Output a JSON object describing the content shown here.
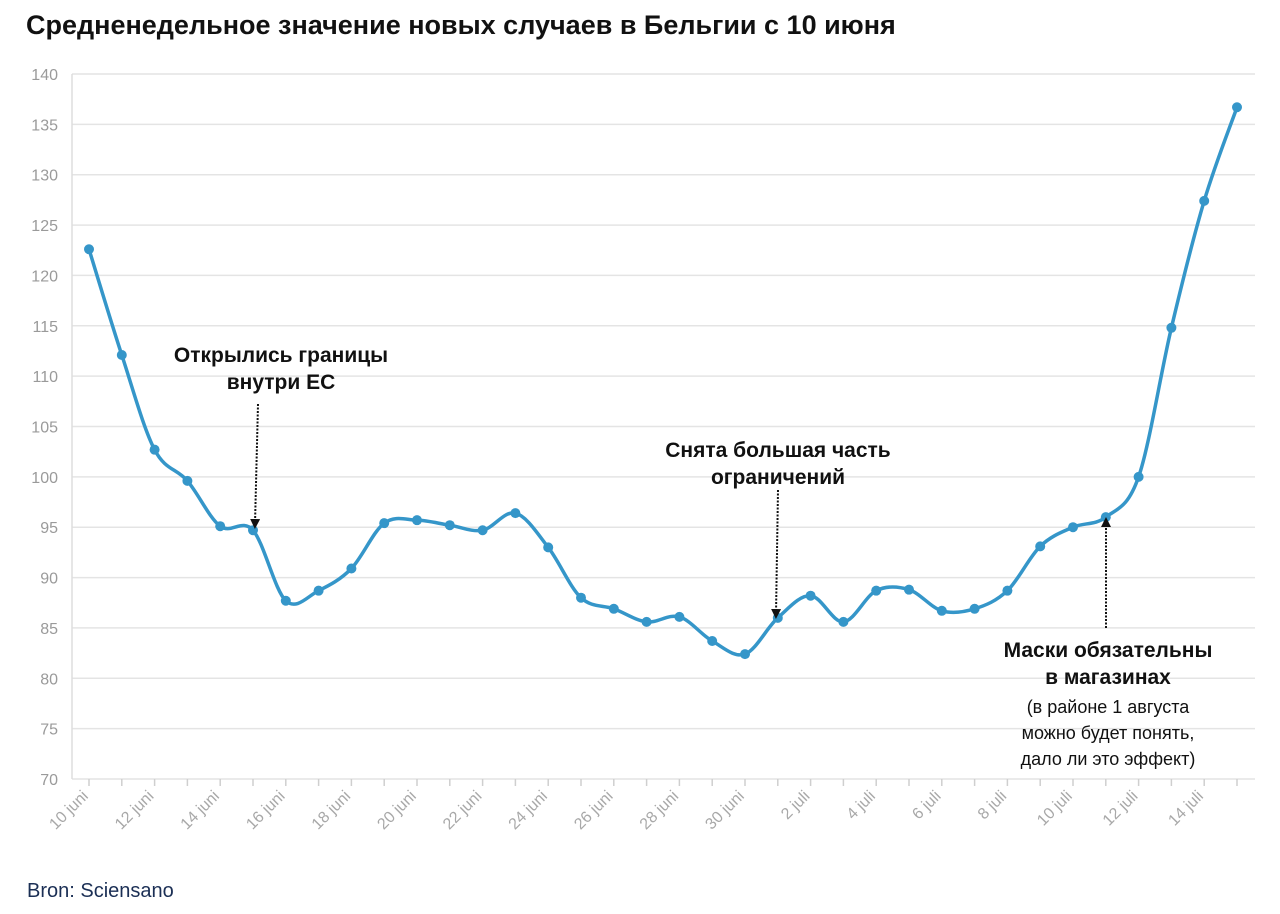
{
  "chart_data": {
    "type": "line",
    "title": "Средненедельное значение новых случаев в Бельгии с 10 июня",
    "source": "Bron: Sciensano",
    "ylim": [
      70,
      140
    ],
    "yticks": [
      70,
      75,
      80,
      85,
      90,
      95,
      100,
      105,
      110,
      115,
      120,
      125,
      130,
      135,
      140
    ],
    "grid": true,
    "x_tick_labels": [
      "10 juni",
      "12 juni",
      "14 juni",
      "16 juni",
      "18 juni",
      "20 juni",
      "22 juni",
      "24 juni",
      "26 juni",
      "28 juni",
      "30 juni",
      "2 juli",
      "4 juli",
      "6 juli",
      "8 juli",
      "10 juli",
      "12 juli",
      "14 juli"
    ],
    "x": [
      "10 juni",
      "11 juni",
      "12 juni",
      "13 juni",
      "14 juni",
      "15 juni",
      "16 juni",
      "17 juni",
      "18 juni",
      "19 juni",
      "20 juni",
      "21 juni",
      "22 juni",
      "23 juni",
      "24 juni",
      "25 juni",
      "26 juni",
      "27 juni",
      "28 juni",
      "29 juni",
      "30 juni",
      "1 juli",
      "2 juli",
      "3 juli",
      "4 juli",
      "5 juli",
      "6 juli",
      "7 juli",
      "8 juli",
      "9 juli",
      "10 juli",
      "11 juli",
      "12 juli",
      "13 juli",
      "14 juli",
      "15 juli"
    ],
    "series": [
      {
        "color": "#3596c9",
        "values": [
          122.6,
          112.1,
          102.7,
          99.6,
          95.1,
          94.7,
          87.7,
          88.7,
          90.9,
          95.4,
          95.7,
          95.2,
          94.7,
          96.4,
          93.0,
          88.0,
          86.9,
          85.6,
          86.1,
          83.7,
          82.4,
          86.0,
          88.2,
          85.6,
          88.7,
          88.8,
          86.7,
          86.9,
          88.7,
          93.1,
          95.0,
          96.0,
          100.0,
          114.8,
          127.4,
          136.7
        ]
      }
    ],
    "annotations": [
      {
        "title_lines": [
          "Открылись границы",
          "внутри ЕС"
        ],
        "sub_lines": [],
        "x": "15 juni",
        "y": 94.7
      },
      {
        "title_lines": [
          "Снята большая часть",
          "ограничений"
        ],
        "sub_lines": [],
        "x": "1 juli",
        "y": 86.0
      },
      {
        "title_lines": [
          "Маски обязательны",
          "в магазинах"
        ],
        "sub_lines": [
          "(в районе 1 августа",
          "можно будет понять,",
          "дало ли это эффект)"
        ],
        "x": "11 juli",
        "y": 96.0
      }
    ]
  }
}
